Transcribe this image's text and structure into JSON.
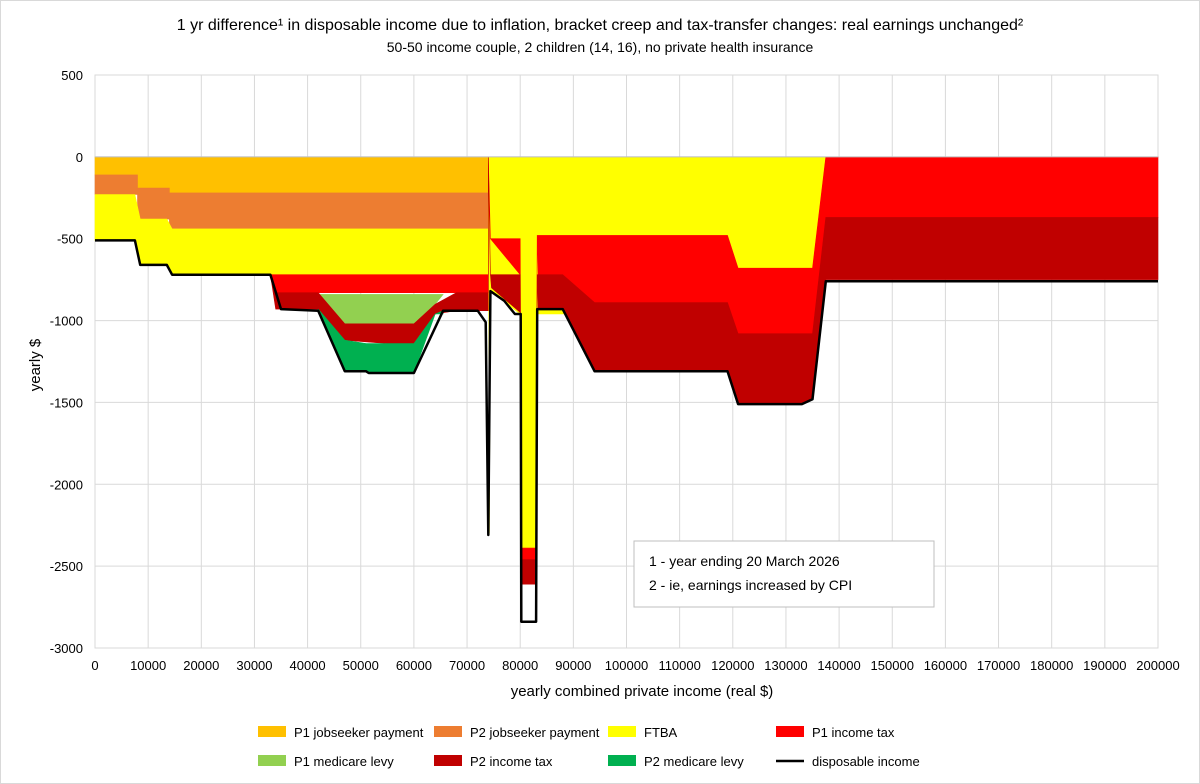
{
  "chart_data": {
    "type": "area",
    "title": "1 yr difference¹ in disposable income due to inflation, bracket creep and tax-transfer changes: real earnings unchanged²",
    "subtitle": "50-50 income couple, 2 children (14, 16), no private health insurance",
    "xlabel": "yearly combined private income (real $)",
    "ylabel": "yearly $",
    "xlim": [
      0,
      200000
    ],
    "ylim": [
      -3000,
      500
    ],
    "x_ticks": [
      0,
      10000,
      20000,
      30000,
      40000,
      50000,
      60000,
      70000,
      80000,
      90000,
      100000,
      110000,
      120000,
      130000,
      140000,
      150000,
      160000,
      170000,
      180000,
      190000,
      200000
    ],
    "y_ticks": [
      500,
      0,
      -500,
      -1000,
      -1500,
      -2000,
      -2500,
      -3000
    ],
    "grid": "vertical",
    "legend_position": "bottom",
    "notes": [
      "1 - year ending 20 March 2026",
      "2 - ie, earnings increased by CPI"
    ],
    "series": [
      {
        "name": "P1 jobseeker payment",
        "color": "#FFC000",
        "points": [
          [
            0,
            0,
            -110
          ],
          [
            8000,
            0,
            -110
          ],
          [
            8000,
            0,
            -190
          ],
          [
            14000,
            0,
            -190
          ],
          [
            14000,
            0,
            -220
          ],
          [
            74000,
            0,
            -220
          ],
          [
            74000,
            0,
            0
          ]
        ]
      },
      {
        "name": "P2 jobseeker payment",
        "color": "#ED7D31",
        "points": [
          [
            0,
            -110,
            -230
          ],
          [
            8000,
            -110,
            -230
          ],
          [
            8000,
            -190,
            -380
          ],
          [
            14000,
            -190,
            -380
          ],
          [
            14000,
            -220,
            -440
          ],
          [
            74000,
            -220,
            -440
          ],
          [
            74000,
            0,
            0
          ]
        ]
      },
      {
        "name": "FTBA",
        "color": "#FFFF00",
        "points": [
          [
            0,
            -230,
            -510
          ],
          [
            7500,
            -230,
            -510
          ],
          [
            8500,
            -380,
            -660
          ],
          [
            13500,
            -380,
            -660
          ],
          [
            14500,
            -440,
            -720
          ],
          [
            74000,
            -440,
            -720
          ],
          [
            74000,
            0,
            0
          ],
          [
            74200,
            0,
            -2300
          ],
          [
            74400,
            0,
            -820
          ],
          [
            80000,
            0,
            -960
          ],
          [
            80200,
            0,
            -2390
          ],
          [
            83000,
            0,
            -2390
          ],
          [
            83200,
            0,
            -960
          ],
          [
            119000,
            0,
            -960
          ],
          [
            121000,
            0,
            -680
          ],
          [
            135000,
            0,
            -680
          ],
          [
            137500,
            0,
            0
          ]
        ]
      },
      {
        "name": "P1 income tax",
        "color": "#FF0000",
        "points": [
          [
            33000,
            -720,
            -720
          ],
          [
            34000,
            -720,
            -830
          ],
          [
            65000,
            -720,
            -830
          ],
          [
            68000,
            -720,
            -830
          ],
          [
            74000,
            -720,
            -830
          ],
          [
            74000,
            0,
            0
          ],
          [
            74400,
            -500,
            -500
          ],
          [
            80000,
            -500,
            -720
          ],
          [
            80200,
            -2390,
            -2390
          ],
          [
            80300,
            -2390,
            -2460
          ],
          [
            83000,
            -2390,
            -2460
          ],
          [
            83200,
            -480,
            -480
          ],
          [
            83400,
            -480,
            -720
          ],
          [
            88000,
            -480,
            -720
          ],
          [
            90000,
            -480,
            -780
          ],
          [
            94000,
            -480,
            -890
          ],
          [
            119000,
            -480,
            -890
          ],
          [
            121000,
            -680,
            -1080
          ],
          [
            135000,
            -680,
            -1080
          ],
          [
            137500,
            0,
            -370
          ],
          [
            200000,
            0,
            -370
          ]
        ]
      },
      {
        "name": "P1 medicare levy",
        "color": "#92D050",
        "points": [
          [
            42000,
            -840,
            -840
          ],
          [
            47000,
            -840,
            -1020
          ],
          [
            55000,
            -840,
            -1020
          ],
          [
            60000,
            -840,
            -1020
          ],
          [
            64000,
            -840,
            -900
          ],
          [
            65500,
            -840,
            -840
          ]
        ]
      },
      {
        "name": "P2 income tax",
        "color": "#C00000",
        "points": [
          [
            33000,
            -720,
            -720
          ],
          [
            34000,
            -830,
            -930
          ],
          [
            42000,
            -830,
            -930
          ],
          [
            47000,
            -1020,
            -1120
          ],
          [
            55000,
            -1020,
            -1140
          ],
          [
            60000,
            -1020,
            -1140
          ],
          [
            64000,
            -900,
            -960
          ],
          [
            68000,
            -830,
            -940
          ],
          [
            74000,
            -830,
            -940
          ],
          [
            74000,
            0,
            0
          ],
          [
            74400,
            -720,
            -720
          ],
          [
            74600,
            -720,
            -800
          ],
          [
            80000,
            -720,
            -950
          ],
          [
            80200,
            -2460,
            -2610
          ],
          [
            83000,
            -2460,
            -2610
          ],
          [
            83200,
            -720,
            -720
          ],
          [
            83400,
            -720,
            -930
          ],
          [
            88000,
            -720,
            -930
          ],
          [
            94000,
            -890,
            -1310
          ],
          [
            119000,
            -890,
            -1310
          ],
          [
            121000,
            -1080,
            -1510
          ],
          [
            133000,
            -1080,
            -1510
          ],
          [
            135000,
            -1080,
            -1480
          ],
          [
            137500,
            -370,
            -750
          ],
          [
            200000,
            -370,
            -750
          ]
        ]
      },
      {
        "name": "P2 medicare levy",
        "color": "#00B050",
        "points": [
          [
            42000,
            -930,
            -930
          ],
          [
            47000,
            -1120,
            -1310
          ],
          [
            51000,
            -1140,
            -1310
          ],
          [
            55000,
            -1140,
            -1320
          ],
          [
            60000,
            -1140,
            -1320
          ],
          [
            64000,
            -960,
            -960
          ],
          [
            65500,
            -960,
            -940
          ]
        ]
      },
      {
        "name": "disposable income",
        "color": "#000000",
        "line": [
          [
            0,
            -510
          ],
          [
            7500,
            -510
          ],
          [
            8500,
            -660
          ],
          [
            13500,
            -660
          ],
          [
            14500,
            -720
          ],
          [
            33000,
            -720
          ],
          [
            35000,
            -930
          ],
          [
            42000,
            -940
          ],
          [
            47000,
            -1310
          ],
          [
            51000,
            -1310
          ],
          [
            51500,
            -1320
          ],
          [
            60000,
            -1320
          ],
          [
            65500,
            -940
          ],
          [
            72000,
            -940
          ],
          [
            73500,
            -1010
          ],
          [
            74000,
            -2310
          ],
          [
            74400,
            -820
          ],
          [
            77000,
            -880
          ],
          [
            79000,
            -960
          ],
          [
            80100,
            -960
          ],
          [
            80200,
            -2840
          ],
          [
            83000,
            -2840
          ],
          [
            83200,
            -930
          ],
          [
            88000,
            -930
          ],
          [
            94000,
            -1310
          ],
          [
            119000,
            -1310
          ],
          [
            121000,
            -1510
          ],
          [
            133000,
            -1510
          ],
          [
            135000,
            -1480
          ],
          [
            137500,
            -760
          ],
          [
            200000,
            -760
          ]
        ]
      }
    ]
  }
}
